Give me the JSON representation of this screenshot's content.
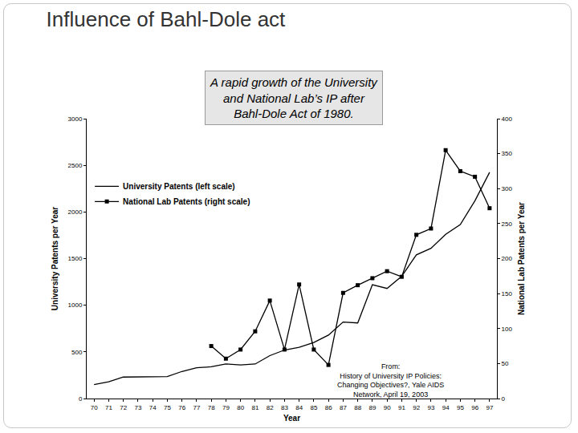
{
  "chart_data": {
    "type": "line",
    "title": "Influence of Bahl-Dole act",
    "x_label": "Year",
    "y_label": "University Patents per Year",
    "y2_label": "National Lab Patents per Year",
    "x": [
      70,
      71,
      72,
      73,
      74,
      75,
      76,
      77,
      78,
      79,
      80,
      81,
      82,
      83,
      84,
      85,
      86,
      87,
      88,
      89,
      90,
      91,
      92,
      93,
      94,
      95,
      96,
      97
    ],
    "xlim": [
      69.5,
      97.5
    ],
    "xticks": [
      70,
      71,
      72,
      73,
      74,
      75,
      76,
      77,
      78,
      79,
      80,
      81,
      82,
      83,
      84,
      85,
      86,
      87,
      88,
      89,
      90,
      91,
      92,
      93,
      94,
      95,
      96,
      97
    ],
    "ylim": [
      0,
      3000
    ],
    "yticks": [
      0,
      500,
      1000,
      1500,
      2000,
      2500,
      3000
    ],
    "y2lim": [
      0,
      400
    ],
    "y2ticks": [
      0,
      50,
      100,
      150,
      200,
      250,
      300,
      350,
      400
    ],
    "grid": false,
    "legend": "upper left",
    "series": [
      {
        "name": "University Patents (left scale)",
        "color": "#000000",
        "marker": "none",
        "line_style": "solid",
        "values": [
          150,
          180,
          230,
          230,
          230,
          235,
          290,
          330,
          340,
          370,
          360,
          370,
          460,
          520,
          550,
          600,
          680,
          820,
          810,
          1220,
          1180,
          1310,
          1540,
          1610,
          1760,
          1865,
          2120,
          2425
        ]
      },
      {
        "name": "National Lab Patents (right scale)",
        "color": "#000000",
        "marker": "square",
        "line_style": "solid",
        "axis": "y2",
        "values": [
          null,
          null,
          null,
          null,
          null,
          null,
          null,
          null,
          75,
          57,
          70,
          96,
          140,
          70,
          163,
          70,
          48,
          151,
          162,
          172,
          182,
          174,
          234,
          243,
          355,
          325,
          317,
          272
        ]
      }
    ],
    "annotations": [
      {
        "lines": [
          "A rapid growth of the University",
          "and National Lab’s IP after",
          "Bahl-Dole Act of 1980."
        ]
      },
      {
        "lines": [
          "From:",
          "History of University IP Policies:",
          "Changing Objectives?, Yale AIDS",
          "Network, April 19, 2003"
        ]
      }
    ]
  }
}
